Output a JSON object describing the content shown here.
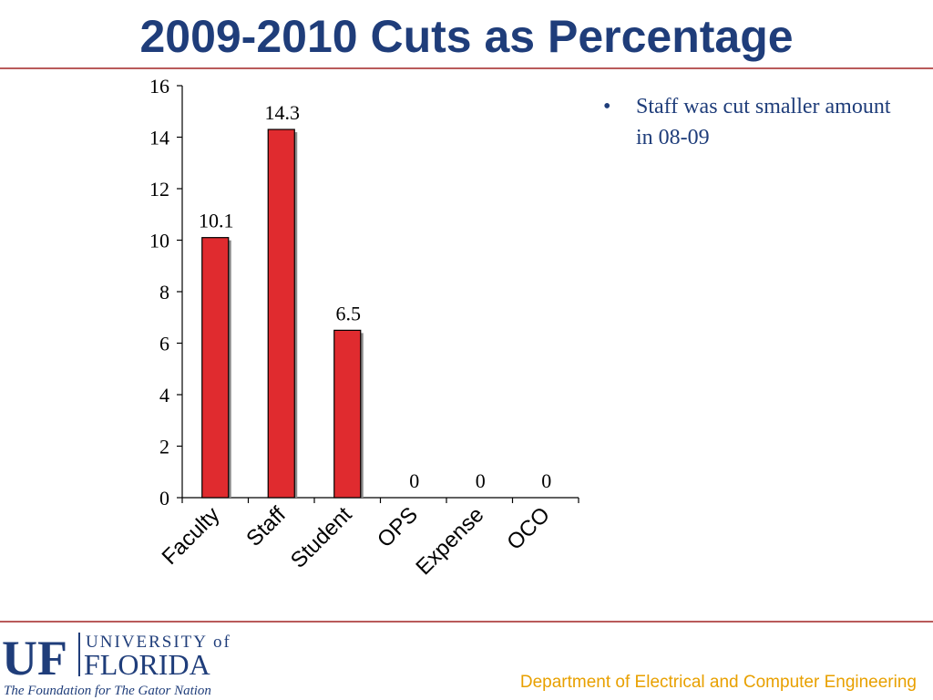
{
  "slide": {
    "title": "2009-2010 Cuts as Percentage",
    "bullets": [
      "Staff was cut smaller amount in 08-09"
    ],
    "footer": "Department of Electrical and Computer Engineering",
    "logo": {
      "uf": "UF",
      "university_of": "UNIVERSITY of",
      "florida": "FLORIDA",
      "tagline": "The Foundation for The Gator Nation"
    }
  },
  "colors": {
    "title": "#1f3d7a",
    "bar": "#e02b2f",
    "rule": "#b95a5a",
    "footer": "#e8a000"
  },
  "chart_data": {
    "type": "bar",
    "categories": [
      "Faculty",
      "Staff",
      "Student",
      "OPS",
      "Expense",
      "OCO"
    ],
    "values": [
      10.1,
      14.3,
      6.5,
      0,
      0,
      0
    ],
    "data_labels": [
      "10.1",
      "14.3",
      "6.5",
      "0",
      "0",
      "0"
    ],
    "yticks": [
      "0",
      "2",
      "4",
      "6",
      "8",
      "10",
      "12",
      "14",
      "16"
    ],
    "ylim": [
      0,
      16
    ],
    "grid": false,
    "legend": "none"
  }
}
